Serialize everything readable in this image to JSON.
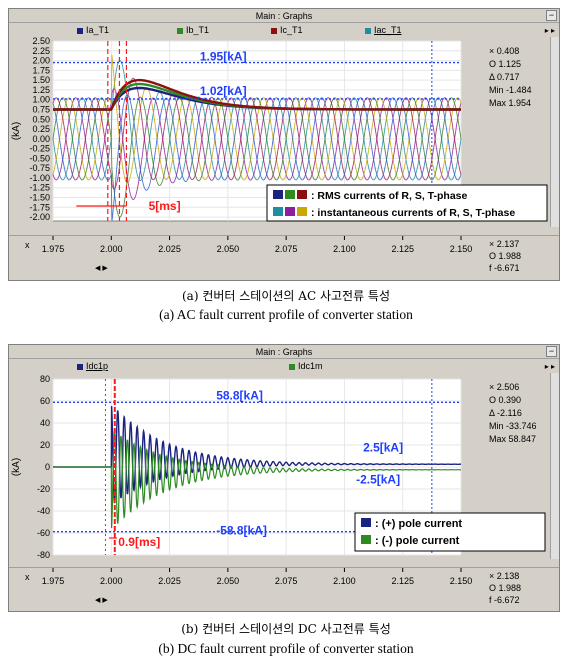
{
  "chart_data": [
    {
      "type": "line",
      "window_title": "Main : Graphs",
      "legend": [
        "Ia_T1",
        "Ib_T1",
        "Ic_T1",
        "Iac_T1"
      ],
      "ylabel": "(kA)",
      "xlabel": "x",
      "xlim": [
        1.975,
        2.15
      ],
      "ylim": [
        -2.1,
        2.5
      ],
      "x_ticks": [
        1.975,
        2.0,
        2.025,
        2.05,
        2.075,
        2.1,
        2.125,
        2.15
      ],
      "x_tick_labels": [
        "1.975",
        "2.000",
        "2.025",
        "2.050",
        "2.075",
        "2.100",
        "2.125",
        "2.150"
      ],
      "y_ticks": [
        -2.0,
        -1.75,
        -1.5,
        -1.25,
        -1.0,
        -0.75,
        -0.5,
        -0.25,
        0.0,
        0.25,
        0.5,
        0.75,
        1.0,
        1.25,
        1.5,
        1.75,
        2.0,
        2.25,
        2.5
      ],
      "y_tick_labels": [
        "-2.00",
        "-1.75",
        "-1.50",
        "-1.25",
        "-1.00",
        "-0.75",
        "-0.50",
        "-0.25",
        "0.00",
        "0.25",
        "0.50",
        "0.75",
        "1.00",
        "1.25",
        "1.50",
        "1.75",
        "2.00",
        "2.25",
        "2.50"
      ],
      "colors": {
        "Ia_T1": "#1a237e",
        "Ib_T1": "#2e8b22",
        "Ic_T1": "#8b1010",
        "Iac_T1": "#1e8fa0",
        "ref": "#1f3fff",
        "marker": "#ff1a1a"
      },
      "rms_steady": 0.75,
      "inst_amplitude": 1.05,
      "fault_time": 2.0,
      "annotations": {
        "peak": "1.95[kA]",
        "rms": "1.02[kA]",
        "duration": "5[ms]",
        "legend_rms": ": RMS currents of R, S, T-phase",
        "legend_inst": ": instantaneous currents of R, S, T-phase"
      },
      "ref_lines": {
        "peak": 1.95,
        "rms": 1.02
      },
      "readout": {
        "x": "× 0.408",
        "o": "O 1.125",
        "delta": "Δ 0.717",
        "min": "Min -1.484",
        "max": "Max 1.954"
      },
      "x_readout": {
        "x": "× 2.137",
        "o": "O 1.988",
        "f": "f   -6.671"
      }
    },
    {
      "type": "line",
      "window_title": "Main : Graphs",
      "legend": [
        "Idc1p",
        "Idc1m"
      ],
      "ylabel": "(kA)",
      "xlabel": "x",
      "xlim": [
        1.975,
        2.15
      ],
      "ylim": [
        -80,
        80
      ],
      "x_ticks": [
        1.975,
        2.0,
        2.025,
        2.05,
        2.075,
        2.1,
        2.125,
        2.15
      ],
      "x_tick_labels": [
        "1.975",
        "2.000",
        "2.025",
        "2.050",
        "2.075",
        "2.100",
        "2.125",
        "2.150"
      ],
      "y_ticks": [
        -80,
        -60,
        -40,
        -20,
        0,
        20,
        40,
        60,
        80
      ],
      "y_tick_labels": [
        "-80",
        "-60",
        "-40",
        "-20",
        "0",
        "20",
        "40",
        "60",
        "80"
      ],
      "colors": {
        "Idc1p": "#1a237e",
        "Idc1m": "#2e8b22",
        "ref": "#1f3fff",
        "marker": "#ff1a1a"
      },
      "fault_time": 2.0,
      "peak": 58.8,
      "steady": 2.5,
      "annotations": {
        "peak_pos": "58.8[kA]",
        "peak_neg": "-58.8[kA]",
        "steady_pos": "2.5[kA]",
        "steady_neg": "-2.5[kA]",
        "duration": "0.9[ms]",
        "legend_pos": ": (+) pole current",
        "legend_neg": ": (-) pole current"
      },
      "ref_lines": {
        "peak_pos": 58.8,
        "peak_neg": -58.8
      },
      "readout": {
        "x": "× 2.506",
        "o": "O 0.390",
        "delta": "Δ -2.116",
        "min": "Min -33.746",
        "max": "Max 58.847"
      },
      "x_readout": {
        "x": "× 2.138",
        "o": "O 1.988",
        "f": "f   -6.672"
      }
    }
  ],
  "captions": {
    "a_ko": "(a) 컨버터 스테이션의 AC 사고전류 특성",
    "a_en": "(a) AC fault current profile of converter station",
    "b_ko": "(b) 컨버터 스테이션의 DC 사고전류 특성",
    "b_en": "(b) DC fault current profile of converter station"
  }
}
